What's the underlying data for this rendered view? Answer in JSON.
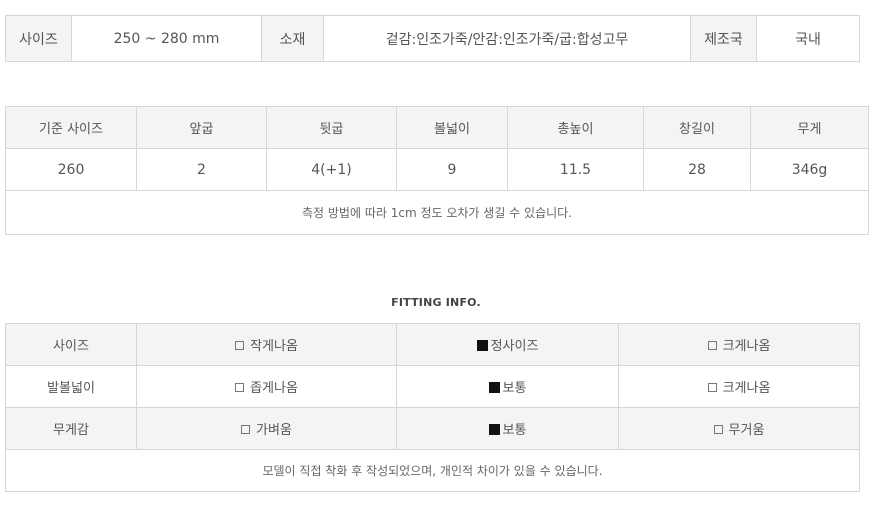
{
  "info": {
    "size_label": "사이즈",
    "size_value": "250 ~ 280 mm",
    "material_label": "소재",
    "material_value": "겉감:인조가죽/안감:인조가죽/굽:합성고무",
    "origin_label": "제조국",
    "origin_value": "국내"
  },
  "size_table": {
    "headers": [
      "기준 사이즈",
      "앞굽",
      "뒷굽",
      "볼넓이",
      "총높이",
      "창길이",
      "무게"
    ],
    "values": [
      "260",
      "2",
      "4(+1)",
      "9",
      "11.5",
      "28",
      "346g"
    ],
    "note": "측정 방법에 따라 1cm 정도 오차가 생길 수 있습니다."
  },
  "fitting": {
    "title": "FITTING INFO.",
    "rows": [
      {
        "label": "사이즈",
        "options": [
          "작게나옴",
          "정사이즈",
          "크게나옴"
        ],
        "selected": 1
      },
      {
        "label": "발볼넓이",
        "options": [
          "좁게나옴",
          "보통",
          "크게나옴"
        ],
        "selected": 1
      },
      {
        "label": "무게감",
        "options": [
          "가벼움",
          "보통",
          "무거움"
        ],
        "selected": 1
      }
    ],
    "note": "모델이 직접 착화 후 작성되었으며, 개인적 차이가 있을 수 있습니다."
  }
}
